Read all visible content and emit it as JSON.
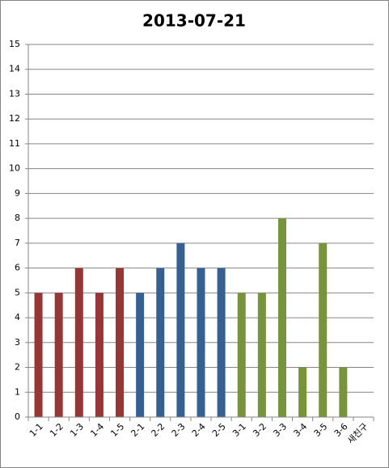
{
  "chart_data": {
    "type": "bar",
    "title": "2013-07-21",
    "categories": [
      "1-1",
      "1-2",
      "1-3",
      "1-4",
      "1-5",
      "2-1",
      "2-2",
      "2-3",
      "2-4",
      "2-5",
      "3-1",
      "3-2",
      "3-3",
      "3-4",
      "3-5",
      "3-6",
      "새친구"
    ],
    "values": [
      5,
      5,
      6,
      5,
      6,
      5,
      6,
      7,
      6,
      6,
      5,
      5,
      8,
      2,
      7,
      2,
      null
    ],
    "colors": [
      "#953735",
      "#953735",
      "#953735",
      "#953735",
      "#953735",
      "#376092",
      "#376092",
      "#376092",
      "#376092",
      "#376092",
      "#77933c",
      "#77933c",
      "#77933c",
      "#77933c",
      "#77933c",
      "#77933c",
      null
    ],
    "ylim": [
      0,
      15
    ],
    "yticks": [
      0,
      1,
      2,
      3,
      4,
      5,
      6,
      7,
      8,
      9,
      10,
      11,
      12,
      13,
      14,
      15
    ],
    "grid": true
  }
}
